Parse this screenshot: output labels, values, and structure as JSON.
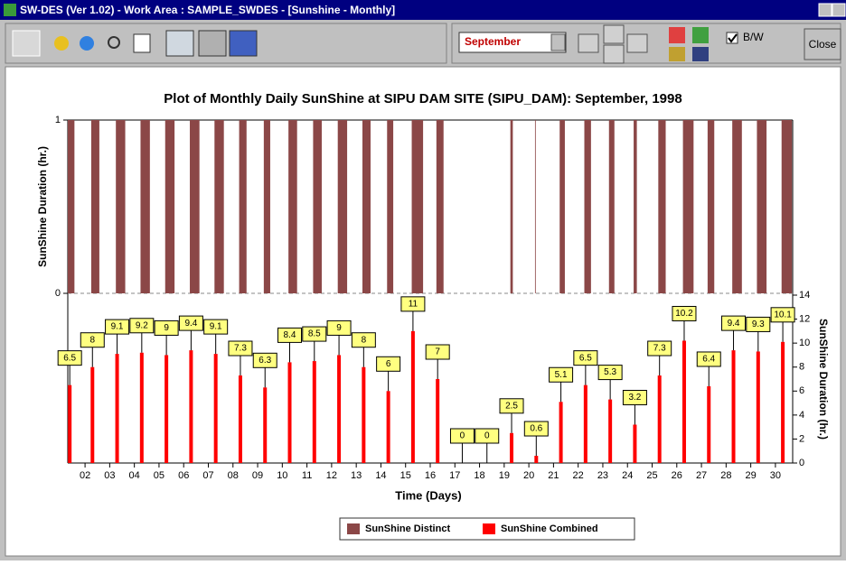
{
  "window": {
    "title": "SW-DES (Ver 1.02) - Work Area : SAMPLE_SWDES - [Sunshine - Monthly]",
    "month": "September",
    "bw": "B/W",
    "close": "Close"
  },
  "chart_data": {
    "type": "bar",
    "title": "Plot of Monthly Daily SunShine at SIPU DAM SITE (SIPU_DAM): September, 1998",
    "xlabel": "Time (Days)",
    "ylabel": "SunShine Duration (hr.)",
    "y2label": "SunShine Duration (hr.)",
    "xlim": [
      1.3,
      30.7
    ],
    "xticks": [
      {
        "value": 2,
        "label": "02"
      },
      {
        "value": 3,
        "label": "03"
      },
      {
        "value": 4,
        "label": "04"
      },
      {
        "value": 5,
        "label": "05"
      },
      {
        "value": 6,
        "label": "06"
      },
      {
        "value": 7,
        "label": "07"
      },
      {
        "value": 8,
        "label": "08"
      },
      {
        "value": 9,
        "label": "09"
      },
      10,
      11,
      12,
      13,
      14,
      15,
      16,
      17,
      18,
      19,
      20,
      21,
      22,
      23,
      24,
      25,
      26,
      27,
      28,
      29,
      30
    ],
    "ylim": [
      0,
      1
    ],
    "yticks": [
      0,
      1
    ],
    "y2lim": [
      0,
      14
    ],
    "y2ticks": [
      0,
      2,
      4,
      6,
      8,
      10,
      12,
      14
    ],
    "legend": "bottom",
    "series": [
      {
        "name": "SunShine Distinct",
        "color": "#8b4747",
        "x_start": [
          1.3,
          2.25,
          3.25,
          4.25,
          5.25,
          6.25,
          7.25,
          8.25,
          9.25,
          10.25,
          11.25,
          12.25,
          13.25,
          14.25,
          15.25,
          16.25,
          19.25,
          20.25,
          21.25,
          22.25,
          23.25,
          24.25,
          25.25,
          26.25,
          27.25,
          28.25,
          29.25,
          30.25
        ],
        "x_end": [
          1.57,
          2.58,
          3.63,
          4.63,
          5.63,
          6.64,
          7.63,
          8.55,
          9.51,
          10.6,
          11.6,
          12.63,
          13.58,
          14.5,
          15.71,
          16.54,
          19.35,
          20.28,
          21.46,
          22.52,
          23.47,
          24.38,
          25.55,
          26.68,
          27.52,
          28.64,
          29.64,
          30.67
        ],
        "values": [
          1,
          1,
          1,
          1,
          1,
          1,
          1,
          1,
          1,
          1,
          1,
          1,
          1,
          1,
          1,
          1,
          1,
          1,
          1,
          1,
          1,
          1,
          1,
          1,
          1,
          1,
          1,
          1
        ]
      },
      {
        "name": "SunShine Combined",
        "color": "#ff0000",
        "axis": "y2",
        "x": [
          1.38,
          2.3,
          3.3,
          4.3,
          5.3,
          6.3,
          7.3,
          8.3,
          9.3,
          10.3,
          11.3,
          12.3,
          13.3,
          14.3,
          15.3,
          16.3,
          17.3,
          18.3,
          19.3,
          20.3,
          21.3,
          22.3,
          23.3,
          24.3,
          25.3,
          26.3,
          27.3,
          28.3,
          29.3,
          30.3
        ],
        "values": [
          6.5,
          8,
          9.1,
          9.2,
          9,
          9.4,
          9.1,
          7.3,
          6.3,
          8.4,
          8.5,
          9,
          8,
          6,
          11,
          7,
          0,
          0,
          2.5,
          0.6,
          5.1,
          6.5,
          5.3,
          3.2,
          7.3,
          10.2,
          6.4,
          9.4,
          9.3,
          10.1
        ]
      }
    ]
  }
}
